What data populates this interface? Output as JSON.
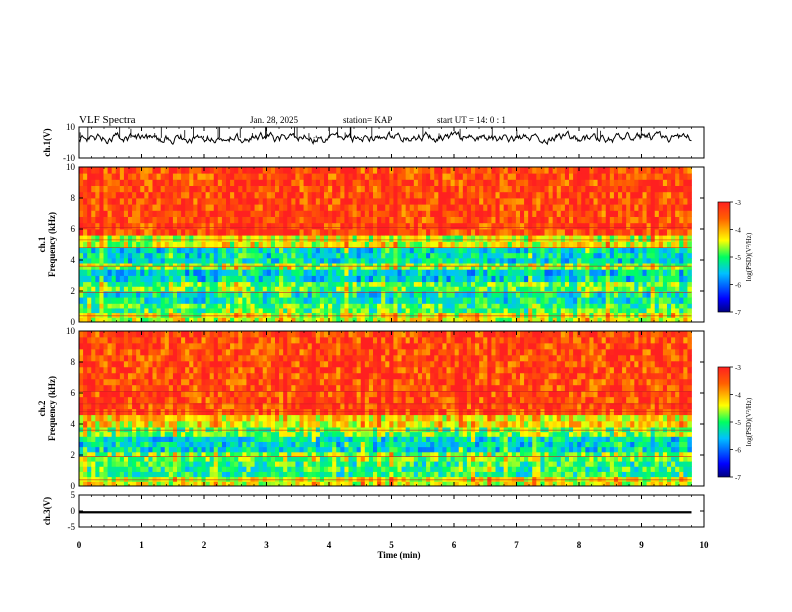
{
  "header": {
    "title": "VLF Spectra",
    "date": "Jan. 28, 2025",
    "station": "station= KAP",
    "start": "start  UT =   14: 0  : 1"
  },
  "chart_data": [
    {
      "type": "line",
      "panel": "ch1-waveform",
      "ylabel": "ch.1(V)",
      "ylim": [
        -10,
        10
      ],
      "yticks": [
        "10",
        "-10"
      ],
      "x_range_min": [
        0,
        9.8
      ],
      "approx_level_v": 3,
      "color": "#000000"
    },
    {
      "type": "heatmap",
      "panel": "ch1-spectrogram",
      "ylabel": "ch.1\nFrequency (kHz)",
      "ylim": [
        0,
        10
      ],
      "yticks": [
        "0",
        "2",
        "4",
        "6",
        "8",
        "10"
      ],
      "x_range_min": [
        0,
        9.8
      ],
      "bands": [
        {
          "f_khz": [
            0.0,
            0.6
          ],
          "log_psd": -4.5
        },
        {
          "f_khz": [
            0.6,
            1.2
          ],
          "log_psd": -5.0
        },
        {
          "f_khz": [
            1.2,
            2.0
          ],
          "log_psd": -5.3
        },
        {
          "f_khz": [
            2.0,
            2.6
          ],
          "log_psd": -4.9
        },
        {
          "f_khz": [
            2.6,
            3.4
          ],
          "log_psd": -5.5
        },
        {
          "f_khz": [
            3.4,
            3.8
          ],
          "log_psd": -4.7
        },
        {
          "f_khz": [
            3.8,
            4.8
          ],
          "log_psd": -5.4
        },
        {
          "f_khz": [
            4.8,
            5.6
          ],
          "log_psd": -4.5
        },
        {
          "f_khz": [
            5.6,
            10.0
          ],
          "log_psd": -3.4
        }
      ],
      "colorbar": {
        "label": "log(PSD)(V²/Hz)",
        "range": [
          -7,
          -3
        ],
        "ticks": [
          "-3",
          "-4",
          "-5",
          "-6",
          "-7"
        ]
      }
    },
    {
      "type": "heatmap",
      "panel": "ch2-spectrogram",
      "ylabel": "ch.2\nFrequency (kHz)",
      "ylim": [
        0,
        10
      ],
      "yticks": [
        "0",
        "2",
        "4",
        "6",
        "8",
        "10"
      ],
      "x_range_min": [
        0,
        9.8
      ],
      "bands": [
        {
          "f_khz": [
            0.0,
            0.6
          ],
          "log_psd": -4.4
        },
        {
          "f_khz": [
            0.6,
            1.6
          ],
          "log_psd": -5.1
        },
        {
          "f_khz": [
            1.6,
            2.2
          ],
          "log_psd": -4.8
        },
        {
          "f_khz": [
            2.2,
            3.2
          ],
          "log_psd": -5.4
        },
        {
          "f_khz": [
            3.2,
            3.8
          ],
          "log_psd": -4.8
        },
        {
          "f_khz": [
            3.8,
            4.6
          ],
          "log_psd": -4.3
        },
        {
          "f_khz": [
            4.6,
            10.0
          ],
          "log_psd": -3.4
        }
      ],
      "colorbar": {
        "label": "log(PSD)(V²/Hz)",
        "range": [
          -7,
          -3
        ],
        "ticks": [
          "-3",
          "-4",
          "-5",
          "-6",
          "-7"
        ]
      }
    },
    {
      "type": "line",
      "panel": "ch3-waveform",
      "ylabel": "ch.3(V)",
      "ylim": [
        -5,
        5
      ],
      "yticks": [
        "5",
        "0",
        "-5"
      ],
      "x_range_min": [
        0,
        9.8
      ],
      "approx_level_v": -0.4,
      "band_halfwidth_v": 0.35,
      "color": "#000000"
    }
  ],
  "xaxis": {
    "label": "Time (min)",
    "ticks": [
      "0",
      "1",
      "2",
      "3",
      "4",
      "5",
      "6",
      "7",
      "8",
      "9",
      "10"
    ],
    "range": [
      0,
      10
    ]
  }
}
